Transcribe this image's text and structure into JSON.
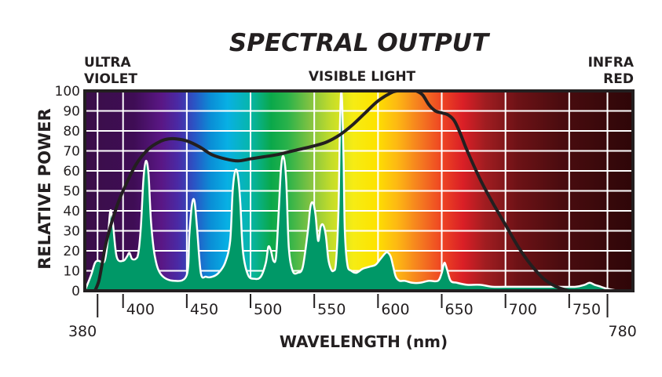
{
  "chart_data": {
    "type": "area",
    "title": "SPECTRAL OUTPUT",
    "xlabel": "WAVELENGTH (nm)",
    "ylabel": "RELATIVE POWER",
    "xlim": [
      370,
      800
    ],
    "ylim": [
      0,
      100
    ],
    "xticks": [
      400,
      450,
      500,
      550,
      600,
      650,
      700,
      750
    ],
    "xtick_labels": [
      "400",
      "450",
      "500",
      "550",
      "600",
      "650",
      "700",
      "750"
    ],
    "yticks": [
      0,
      10,
      20,
      30,
      40,
      50,
      60,
      70,
      80,
      90,
      100
    ],
    "ytick_labels": [
      "0",
      "10",
      "20",
      "30",
      "40",
      "50",
      "60",
      "70",
      "80",
      "90",
      "100"
    ],
    "grid": true,
    "region_labels": [
      {
        "lines": [
          "ULTRA",
          "VIOLET"
        ],
        "position": "top-left"
      },
      {
        "lines": [
          "VISIBLE LIGHT"
        ],
        "position": "top-center"
      },
      {
        "lines": [
          "INFRA",
          "RED"
        ],
        "position": "top-right"
      }
    ],
    "boundary_markers": [
      {
        "x": 380,
        "label": "380"
      },
      {
        "x": 780,
        "label": "780"
      }
    ],
    "colors": {
      "lamp_fill": "#009867",
      "curve": "#231f20",
      "grid": "#ffffff",
      "frame": "#231f20"
    },
    "series": [
      {
        "kind": "area",
        "x": [
          370,
          375,
          378,
          381,
          384,
          386,
          388,
          390,
          392,
          395,
          400,
          403,
          405,
          407,
          410,
          412,
          414,
          416,
          418,
          420,
          422,
          425,
          430,
          440,
          450,
          452,
          454,
          456,
          458,
          461,
          465,
          470,
          475,
          480,
          484,
          486,
          488,
          490,
          492,
          494,
          498,
          503,
          508,
          512,
          514,
          516,
          518,
          520,
          522,
          524,
          526,
          528,
          530,
          533,
          537,
          541,
          545,
          547,
          549,
          551,
          553,
          555,
          557,
          559,
          561,
          563,
          565,
          567,
          569,
          570,
          571,
          572,
          573,
          574,
          576,
          579,
          583,
          588,
          593,
          598,
          602,
          606,
          608,
          610,
          612,
          614,
          617,
          621,
          627,
          633,
          640,
          647,
          650,
          652,
          654,
          657,
          662,
          670,
          680,
          690,
          700,
          720,
          740,
          755,
          762,
          766,
          770,
          775,
          780,
          790,
          800
        ],
        "y": [
          0,
          8,
          14,
          15,
          14,
          16,
          25,
          40,
          34,
          17,
          15,
          17,
          19,
          16,
          16,
          19,
          32,
          56,
          65,
          58,
          34,
          17,
          8,
          5,
          8,
          28,
          43,
          45,
          32,
          9,
          7,
          7,
          9,
          14,
          25,
          50,
          60,
          58,
          44,
          20,
          8,
          6,
          7,
          14,
          22,
          20,
          15,
          17,
          38,
          62,
          67,
          55,
          22,
          10,
          9,
          12,
          30,
          42,
          44,
          38,
          25,
          32,
          33,
          28,
          16,
          11,
          10,
          14,
          40,
          78,
          99,
          92,
          66,
          30,
          13,
          10,
          9,
          11,
          12,
          13,
          16,
          19,
          19,
          17,
          12,
          7,
          5,
          5,
          4,
          4,
          5,
          5,
          9,
          14,
          11,
          5,
          4,
          3,
          3,
          2,
          2,
          2,
          2,
          2,
          3,
          4,
          3,
          2,
          1,
          0,
          0
        ]
      },
      {
        "kind": "line",
        "x": [
          378,
          381,
          384,
          386,
          390,
          395,
          400,
          410,
          420,
          430,
          436,
          442,
          450,
          460,
          470,
          480,
          490,
          500,
          510,
          520,
          530,
          540,
          550,
          560,
          570,
          580,
          590,
          600,
          610,
          615,
          620,
          625,
          630,
          635,
          640,
          645,
          650,
          655,
          660,
          665,
          670,
          680,
          690,
          700,
          710,
          720,
          730,
          740,
          750
        ],
        "y": [
          0,
          5,
          15,
          22,
          32,
          42,
          50,
          63,
          71,
          75,
          76,
          76,
          75,
          72,
          68,
          66,
          65,
          66,
          67,
          68,
          69.5,
          71,
          72.5,
          74.5,
          78,
          83,
          89,
          95,
          99,
          100,
          100.5,
          100.5,
          100,
          98,
          93,
          90,
          89,
          88,
          85,
          78,
          70,
          56,
          44,
          33,
          22,
          13,
          6,
          2,
          0
        ]
      }
    ]
  }
}
